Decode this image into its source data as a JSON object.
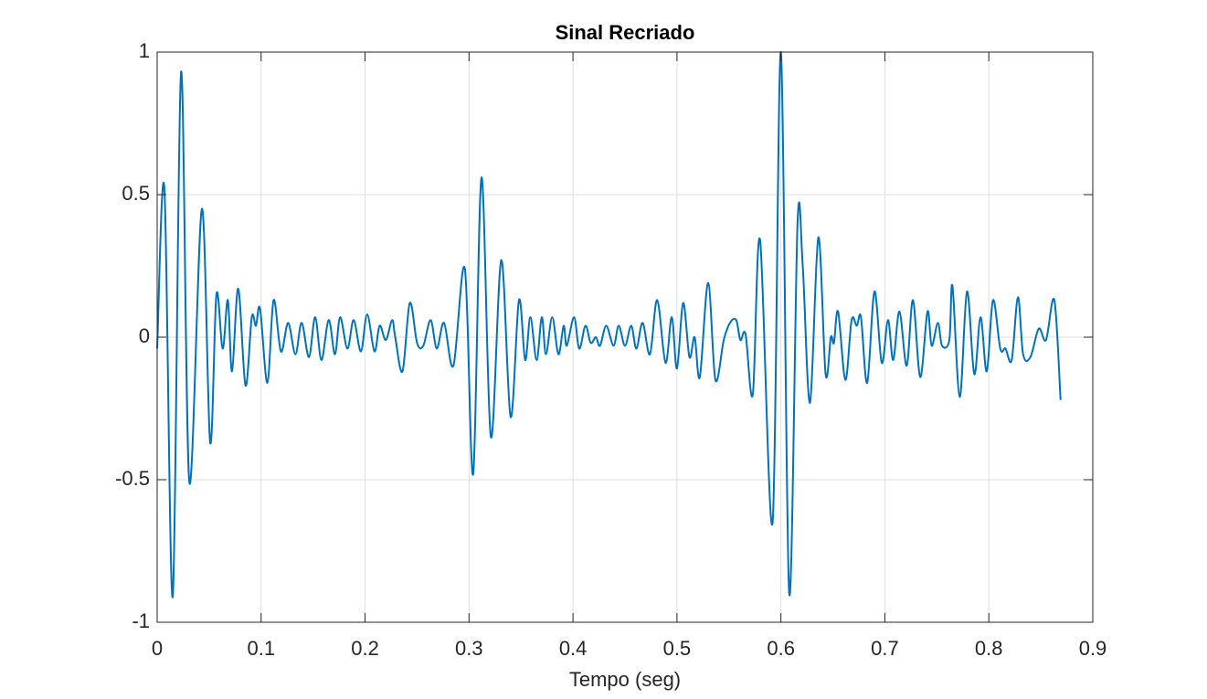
{
  "chart_data": {
    "type": "line",
    "title": "Sinal Recriado",
    "x_label": "Tempo (seg)",
    "xlim": [
      0,
      0.9
    ],
    "xticks": [
      0,
      0.1,
      0.2,
      0.3,
      0.4,
      0.5,
      0.6,
      0.7,
      0.8,
      0.9
    ],
    "ylim": [
      -1,
      1
    ],
    "yticks": [
      -1,
      -0.5,
      0,
      0.5,
      1
    ],
    "grid": true,
    "series": [
      {
        "color": "#0072bd",
        "x": [
          0,
          0.007,
          0.015,
          0.023,
          0.031,
          0.043,
          0.051,
          0.057,
          0.063,
          0.068,
          0.072,
          0.078,
          0.085,
          0.091,
          0.095,
          0.099,
          0.106,
          0.112,
          0.119,
          0.126,
          0.133,
          0.139,
          0.146,
          0.152,
          0.158,
          0.165,
          0.171,
          0.176,
          0.183,
          0.189,
          0.196,
          0.202,
          0.209,
          0.214,
          0.22,
          0.226,
          0.229,
          0.236,
          0.243,
          0.25,
          0.256,
          0.263,
          0.269,
          0.276,
          0.285,
          0.296,
          0.304,
          0.312,
          0.321,
          0.331,
          0.34,
          0.348,
          0.354,
          0.359,
          0.365,
          0.37,
          0.374,
          0.38,
          0.386,
          0.391,
          0.394,
          0.401,
          0.406,
          0.412,
          0.417,
          0.422,
          0.426,
          0.432,
          0.439,
          0.444,
          0.45,
          0.456,
          0.461,
          0.467,
          0.474,
          0.481,
          0.489,
          0.495,
          0.5,
          0.506,
          0.512,
          0.517,
          0.522,
          0.53,
          0.537,
          0.545,
          0.551,
          0.557,
          0.561,
          0.566,
          0.573,
          0.58,
          0.592,
          0.6,
          0.608,
          0.616,
          0.621,
          0.628,
          0.636,
          0.643,
          0.648,
          0.651,
          0.655,
          0.662,
          0.668,
          0.673,
          0.677,
          0.683,
          0.69,
          0.697,
          0.703,
          0.708,
          0.714,
          0.721,
          0.727,
          0.734,
          0.741,
          0.745,
          0.751,
          0.755,
          0.762,
          0.765,
          0.772,
          0.779,
          0.786,
          0.792,
          0.798,
          0.804,
          0.811,
          0.816,
          0.822,
          0.828,
          0.833,
          0.84,
          0.848,
          0.855,
          0.863,
          0.869
        ],
        "values": [
          -0.04,
          0.52,
          -0.91,
          0.93,
          -0.51,
          0.45,
          -0.37,
          0.15,
          -0.04,
          0.13,
          -0.12,
          0.17,
          -0.17,
          0.07,
          0.04,
          0.1,
          -0.16,
          0.13,
          -0.05,
          0.05,
          -0.06,
          0.05,
          -0.07,
          0.07,
          -0.08,
          0.06,
          -0.06,
          0.07,
          -0.04,
          0.06,
          -0.05,
          0.08,
          -0.05,
          0.04,
          -0.01,
          0.06,
          0,
          -0.12,
          0.12,
          -0.02,
          -0.03,
          0.06,
          -0.04,
          0.05,
          -0.1,
          0.24,
          -0.48,
          0.56,
          -0.35,
          0.27,
          -0.28,
          0.13,
          -0.08,
          0.07,
          -0.08,
          0.07,
          -0.06,
          0.07,
          -0.06,
          0.04,
          -0.03,
          0.07,
          -0.04,
          0.04,
          -0.02,
          0,
          -0.03,
          0.04,
          -0.03,
          0.04,
          -0.03,
          0.04,
          -0.04,
          0.05,
          -0.06,
          0.13,
          -0.09,
          0.07,
          -0.11,
          0.12,
          -0.07,
          0,
          -0.14,
          0.19,
          -0.15,
          -0.01,
          0.05,
          0.06,
          -0.01,
          0.01,
          -0.2,
          0.34,
          -0.65,
          1,
          -0.9,
          0.4,
          0.25,
          -0.23,
          0.35,
          -0.13,
          0,
          -0.02,
          0.09,
          -0.15,
          0.06,
          0.04,
          0.07,
          -0.16,
          0.16,
          -0.09,
          0.06,
          -0.08,
          0.09,
          -0.1,
          0.13,
          -0.14,
          0.09,
          -0.03,
          0.05,
          -0.03,
          -0.01,
          0.18,
          -0.21,
          0.16,
          -0.13,
          0.07,
          -0.12,
          0.13,
          -0.04,
          -0.04,
          -0.08,
          0.14,
          -0.06,
          -0.07,
          0.03,
          -0.01,
          0.13,
          -0.22
        ]
      }
    ]
  }
}
